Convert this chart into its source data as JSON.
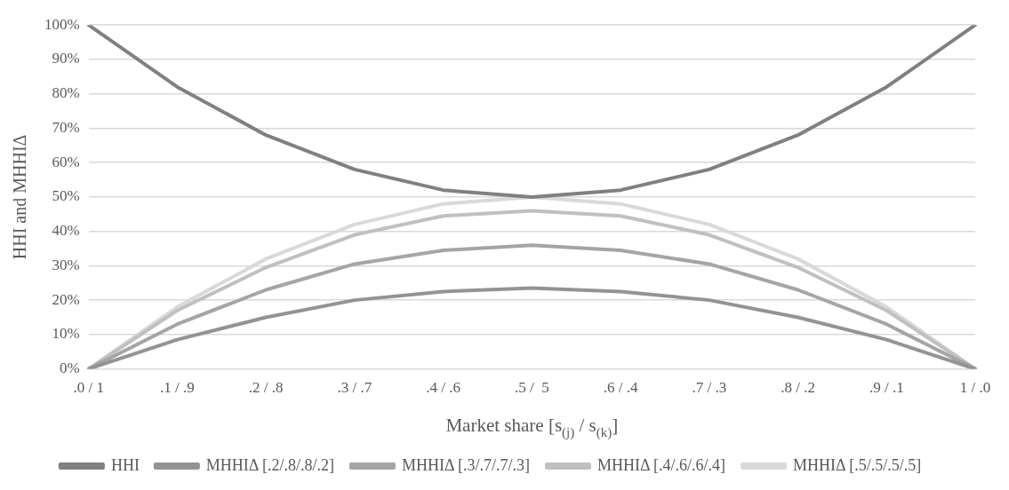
{
  "chart_data": {
    "type": "line",
    "ylabel": "HHI and MHHIΔ",
    "xlabel": "Market share [s$_{(j)}$ / s$_{(k)}$]",
    "categories": [
      ".0 / 1",
      ".1 / .9",
      ".2 / .8",
      ".3 / .7",
      ".4 / .6",
      ".5 /  5",
      ".6 / .4",
      ".7 / .3",
      ".8 / .2",
      ".9 / .1",
      "1 / .0"
    ],
    "series": [
      {
        "name": "HHI",
        "color": "#808080",
        "values": [
          100,
          82,
          68,
          58,
          52,
          50,
          52,
          58,
          68,
          82,
          100
        ]
      },
      {
        "name": "MHHIΔ [.2/.8/.8/.2]",
        "color": "#939393",
        "values": [
          0,
          8.5,
          15,
          20,
          22.5,
          23.5,
          22.5,
          20,
          15,
          8.5,
          0
        ]
      },
      {
        "name": "MHHIΔ [.3/.7/.7/.3]",
        "color": "#a5a5a5",
        "values": [
          0,
          13,
          23,
          30.5,
          34.5,
          36,
          34.5,
          30.5,
          23,
          13,
          0
        ]
      },
      {
        "name": "MHHIΔ [.4/.6/.6/.4]",
        "color": "#c0c0c0",
        "values": [
          0,
          17,
          29.5,
          39,
          44.5,
          46,
          44.5,
          39,
          29.5,
          17,
          0
        ]
      },
      {
        "name": "MHHIΔ [.5/.5/.5/.5]",
        "color": "#d9d9d9",
        "values": [
          0,
          18,
          32,
          42,
          48,
          50,
          48,
          42,
          32,
          18,
          0
        ]
      }
    ],
    "ylim": [
      0,
      100
    ],
    "yticks": [
      {
        "value": 0,
        "label": "0%"
      },
      {
        "value": 10,
        "label": "10%"
      },
      {
        "value": 20,
        "label": "20%"
      },
      {
        "value": 30,
        "label": "30%"
      },
      {
        "value": 40,
        "label": "40%"
      },
      {
        "value": 50,
        "label": "50%"
      },
      {
        "value": 60,
        "label": "60%"
      },
      {
        "value": 70,
        "label": "70%"
      },
      {
        "value": 80,
        "label": "80%"
      },
      {
        "value": 90,
        "label": "90%"
      },
      {
        "value": 100,
        "label": "100%"
      }
    ],
    "grid": "y",
    "legend": "bottom",
    "marker": "none",
    "line_style": "solid"
  }
}
